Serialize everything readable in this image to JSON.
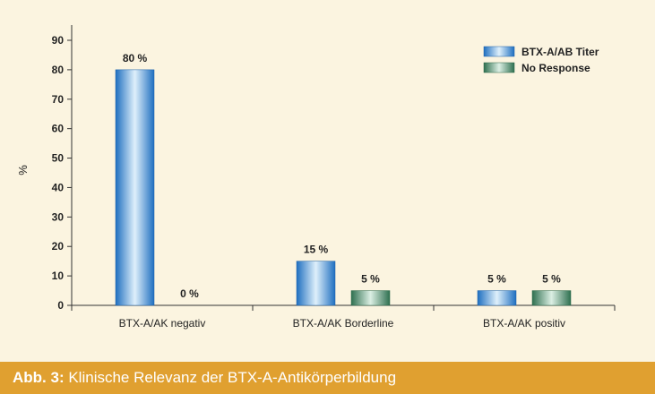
{
  "caption": {
    "label": "Abb. 3:",
    "text": "Klinische Relevanz der BTX-A-Antikörperbildung"
  },
  "chart_data": {
    "type": "bar",
    "ylabel": "%",
    "xlabel": "",
    "ylim": [
      0,
      90
    ],
    "yticks": [
      0,
      10,
      20,
      30,
      40,
      50,
      60,
      70,
      80,
      90
    ],
    "categories": [
      "BTX-A/AK negativ",
      "BTX-A/AK Borderline",
      "BTX-A/AK positiv"
    ],
    "legend_position": "top-right",
    "grid": false,
    "series": [
      {
        "name": "BTX-A/AB Titer",
        "values": [
          80,
          15,
          5
        ],
        "labels": [
          "80 %",
          "15 %",
          "5 %"
        ],
        "color": "#2b8fd8"
      },
      {
        "name": "No Response",
        "values": [
          0,
          5,
          5
        ],
        "labels": [
          "0 %",
          "5 %",
          "5 %"
        ],
        "color": "#3d8a62"
      }
    ]
  }
}
